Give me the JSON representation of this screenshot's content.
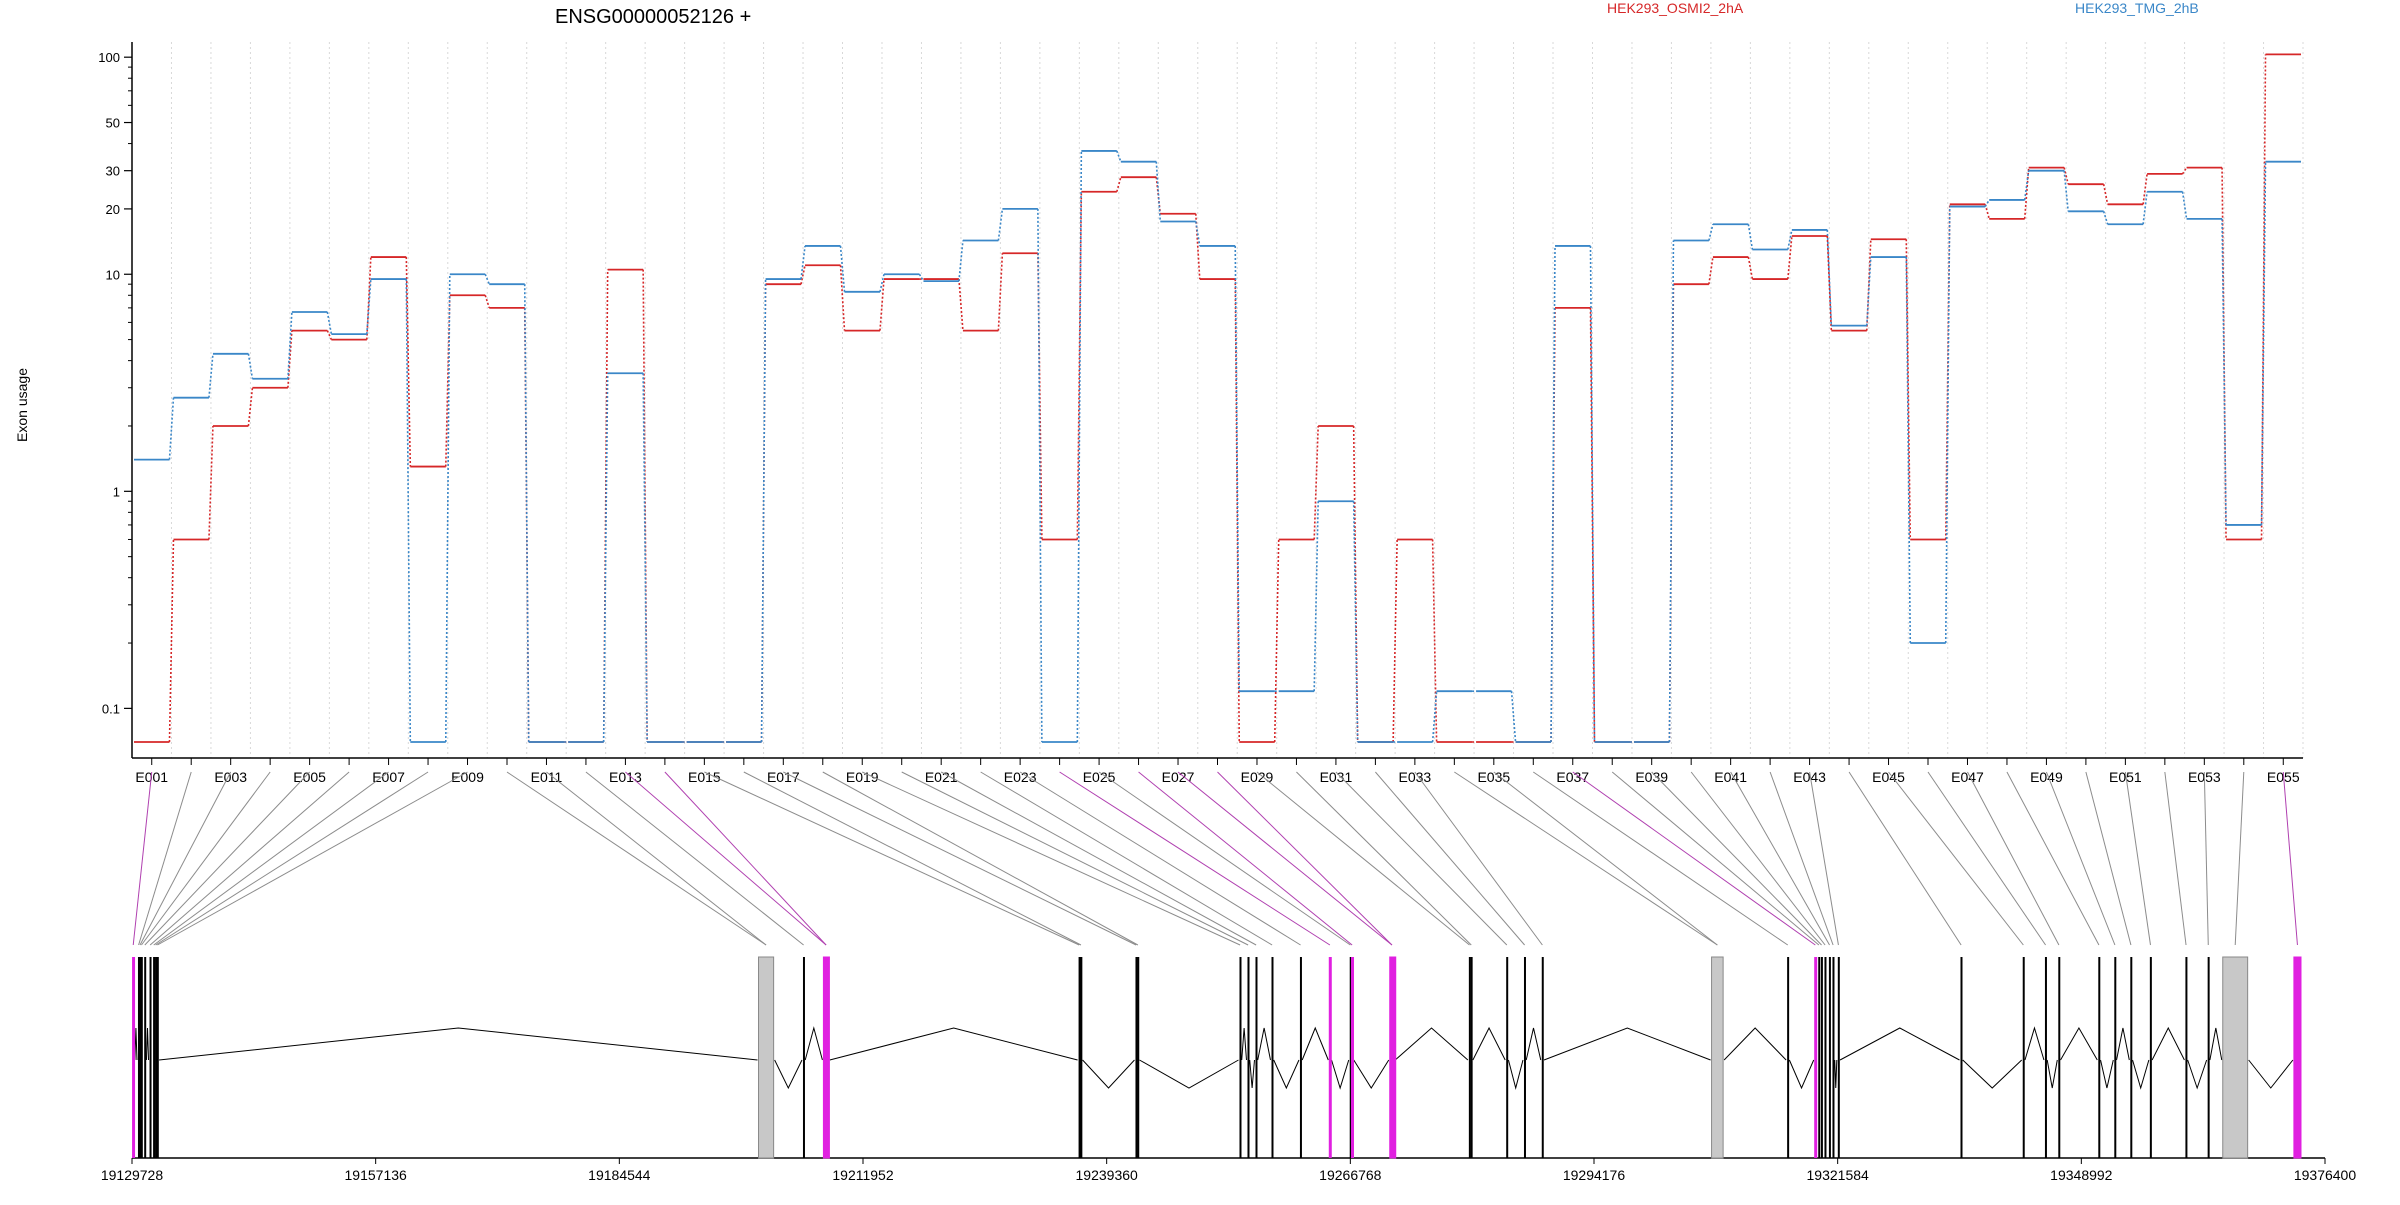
{
  "chart_data": {
    "type": "line",
    "title": "ENSG00000052126 +",
    "ylabel": "Exon usage",
    "xlabel": "",
    "yscale": "log",
    "ylim": [
      0.07,
      120
    ],
    "yticks": [
      "0.1",
      "1",
      "10",
      "20",
      "30",
      "50",
      "100"
    ],
    "grid": "vertical dotted lines per exon",
    "legend_position": "top",
    "exons": [
      "E001",
      "E002",
      "E003",
      "E004",
      "E005",
      "E006",
      "E007",
      "E008",
      "E009",
      "E010",
      "E011",
      "E012",
      "E013",
      "E014",
      "E015",
      "E016",
      "E017",
      "E018",
      "E019",
      "E020",
      "E021",
      "E022",
      "E023",
      "E024",
      "E025",
      "E026",
      "E027",
      "E028",
      "E029",
      "E030",
      "E031",
      "E032",
      "E033",
      "E034",
      "E035",
      "E036",
      "E037",
      "E038",
      "E039",
      "E040",
      "E041",
      "E042",
      "E043",
      "E044",
      "E045",
      "E046",
      "E047",
      "E048",
      "E049",
      "E050",
      "E051",
      "E052",
      "E053",
      "E054",
      "E055"
    ],
    "exon_labels": [
      "E001",
      "E003",
      "E005",
      "E007",
      "E009",
      "E011",
      "E013",
      "E015",
      "E017",
      "E019",
      "E021",
      "E023",
      "E025",
      "E027",
      "E029",
      "E031",
      "E033",
      "E035",
      "E037",
      "E039",
      "E041",
      "E043",
      "E045",
      "E047",
      "E049",
      "E051",
      "E053",
      "E055"
    ],
    "series": [
      {
        "name": "HEK293_OSMI2_2hA",
        "color": "#d62728",
        "values": [
          0.07,
          0.6,
          2,
          3,
          5.5,
          5,
          12,
          1.3,
          8,
          7,
          0.07,
          0.07,
          10.5,
          0.07,
          0.07,
          0.07,
          9,
          11,
          5.5,
          9.5,
          9.5,
          5.5,
          12.5,
          0.6,
          24,
          28,
          19,
          9.5,
          0.07,
          0.6,
          2,
          0.07,
          0.6,
          0.07,
          0.07,
          0.07,
          7,
          0.07,
          0.07,
          9,
          12,
          9.5,
          15,
          5.5,
          14.5,
          0.6,
          21,
          18,
          31,
          26,
          21,
          29,
          31,
          0.6,
          103
        ]
      },
      {
        "name": "HEK293_TMG_2hB",
        "color": "#3a87c8",
        "values": [
          1.4,
          2.7,
          4.3,
          3.3,
          6.7,
          5.3,
          9.5,
          0.07,
          10,
          9,
          0.07,
          0.07,
          3.5,
          0.07,
          0.07,
          0.07,
          9.5,
          13.5,
          8.3,
          10,
          9.3,
          14.3,
          20,
          0.07,
          37,
          33,
          17.5,
          13.5,
          0.12,
          0.12,
          0.9,
          0.07,
          0.07,
          0.12,
          0.12,
          0.07,
          13.5,
          0.07,
          0.07,
          14.3,
          17,
          13,
          16,
          5.8,
          12,
          0.2,
          20.5,
          22,
          30,
          19.5,
          17,
          24,
          18,
          0.7,
          33
        ]
      }
    ],
    "gene_model": {
      "coordinate_ticks": [
        "19129728",
        "19157136",
        "19184544",
        "19211952",
        "19239360",
        "19266768",
        "19294176",
        "19321584",
        "19348992",
        "19376400"
      ],
      "start": 19129728,
      "end": 19376400,
      "highlight_color": "#e020e0",
      "exon_color": "#000000",
      "box_fill": "#c8c8c8",
      "exons": [
        {
          "id": "E001",
          "start": 19129790,
          "end": 19129940,
          "kind": "line",
          "highlight": true
        },
        {
          "id": "E002",
          "start": 19130400,
          "end": 19130540,
          "kind": "line"
        },
        {
          "id": "E003",
          "start": 19130560,
          "end": 19130700,
          "kind": "line"
        },
        {
          "id": "E004",
          "start": 19130720,
          "end": 19130860,
          "kind": "line"
        },
        {
          "id": "E005",
          "start": 19131100,
          "end": 19131240,
          "kind": "line"
        },
        {
          "id": "E006",
          "start": 19131700,
          "end": 19131840,
          "kind": "line"
        },
        {
          "id": "E007",
          "start": 19132100,
          "end": 19132240,
          "kind": "line"
        },
        {
          "id": "E008",
          "start": 19132320,
          "end": 19132460,
          "kind": "line"
        },
        {
          "id": "E009",
          "start": 19132520,
          "end": 19132660,
          "kind": "line"
        },
        {
          "id": "E010",
          "start": 19200200,
          "end": 19201900,
          "kind": "box"
        },
        {
          "id": "E011",
          "start": 19200200,
          "end": 19201900,
          "kind": "box"
        },
        {
          "id": "E012",
          "start": 19205200,
          "end": 19205340,
          "kind": "line"
        },
        {
          "id": "E013",
          "start": 19207500,
          "end": 19208100,
          "kind": "box",
          "highlight": true
        },
        {
          "id": "E014",
          "start": 19207500,
          "end": 19208100,
          "kind": "box",
          "highlight": true
        },
        {
          "id": "E015",
          "start": 19236200,
          "end": 19236340,
          "kind": "line"
        },
        {
          "id": "E016",
          "start": 19236400,
          "end": 19236540,
          "kind": "line"
        },
        {
          "id": "E017",
          "start": 19242600,
          "end": 19242740,
          "kind": "line"
        },
        {
          "id": "E018",
          "start": 19242800,
          "end": 19242940,
          "kind": "line"
        },
        {
          "id": "E019",
          "start": 19254300,
          "end": 19254440,
          "kind": "line"
        },
        {
          "id": "E020",
          "start": 19255200,
          "end": 19255340,
          "kind": "line"
        },
        {
          "id": "E021",
          "start": 19256100,
          "end": 19256240,
          "kind": "line"
        },
        {
          "id": "E022",
          "start": 19257900,
          "end": 19258040,
          "kind": "line"
        },
        {
          "id": "E023",
          "start": 19261100,
          "end": 19261240,
          "kind": "line"
        },
        {
          "id": "E024",
          "start": 19264400,
          "end": 19264540,
          "kind": "line",
          "highlight": true
        },
        {
          "id": "E025",
          "start": 19266700,
          "end": 19266840,
          "kind": "line"
        },
        {
          "id": "E026",
          "start": 19266900,
          "end": 19267040,
          "kind": "line",
          "highlight": true
        },
        {
          "id": "E027",
          "start": 19271200,
          "end": 19271700,
          "kind": "box",
          "highlight": true
        },
        {
          "id": "E028",
          "start": 19271200,
          "end": 19271700,
          "kind": "box",
          "highlight": true
        },
        {
          "id": "E029",
          "start": 19280100,
          "end": 19280240,
          "kind": "line"
        },
        {
          "id": "E030",
          "start": 19280300,
          "end": 19280440,
          "kind": "line"
        },
        {
          "id": "E031",
          "start": 19284300,
          "end": 19284440,
          "kind": "line"
        },
        {
          "id": "E032",
          "start": 19286300,
          "end": 19286440,
          "kind": "line"
        },
        {
          "id": "E033",
          "start": 19288300,
          "end": 19288440,
          "kind": "line"
        },
        {
          "id": "E034",
          "start": 19307400,
          "end": 19308700,
          "kind": "box"
        },
        {
          "id": "E035",
          "start": 19307400,
          "end": 19308700,
          "kind": "box"
        },
        {
          "id": "E036",
          "start": 19315900,
          "end": 19316040,
          "kind": "line"
        },
        {
          "id": "E037",
          "start": 19319000,
          "end": 19319140,
          "kind": "line",
          "highlight": true
        },
        {
          "id": "E038",
          "start": 19319400,
          "end": 19319540,
          "kind": "line"
        },
        {
          "id": "E039",
          "start": 19319700,
          "end": 19319840,
          "kind": "line"
        },
        {
          "id": "E040",
          "start": 19320100,
          "end": 19320240,
          "kind": "line"
        },
        {
          "id": "E041",
          "start": 19320600,
          "end": 19320740,
          "kind": "line"
        },
        {
          "id": "E042",
          "start": 19321000,
          "end": 19321140,
          "kind": "line"
        },
        {
          "id": "E043",
          "start": 19321600,
          "end": 19321740,
          "kind": "line"
        },
        {
          "id": "E044",
          "start": 19335400,
          "end": 19335540,
          "kind": "line"
        },
        {
          "id": "E045",
          "start": 19342400,
          "end": 19342540,
          "kind": "line"
        },
        {
          "id": "E046",
          "start": 19344900,
          "end": 19345040,
          "kind": "line"
        },
        {
          "id": "E047",
          "start": 19346400,
          "end": 19346540,
          "kind": "line"
        },
        {
          "id": "E048",
          "start": 19350900,
          "end": 19351040,
          "kind": "line"
        },
        {
          "id": "E049",
          "start": 19352700,
          "end": 19352840,
          "kind": "line"
        },
        {
          "id": "E050",
          "start": 19354500,
          "end": 19354640,
          "kind": "line"
        },
        {
          "id": "E051",
          "start": 19356700,
          "end": 19356840,
          "kind": "line"
        },
        {
          "id": "E052",
          "start": 19360700,
          "end": 19360840,
          "kind": "line"
        },
        {
          "id": "E053",
          "start": 19363200,
          "end": 19363340,
          "kind": "line"
        },
        {
          "id": "E054",
          "start": 19364900,
          "end": 19367700,
          "kind": "box"
        },
        {
          "id": "E055",
          "start": 19372900,
          "end": 19373700,
          "kind": "box",
          "highlight": true
        }
      ]
    }
  }
}
